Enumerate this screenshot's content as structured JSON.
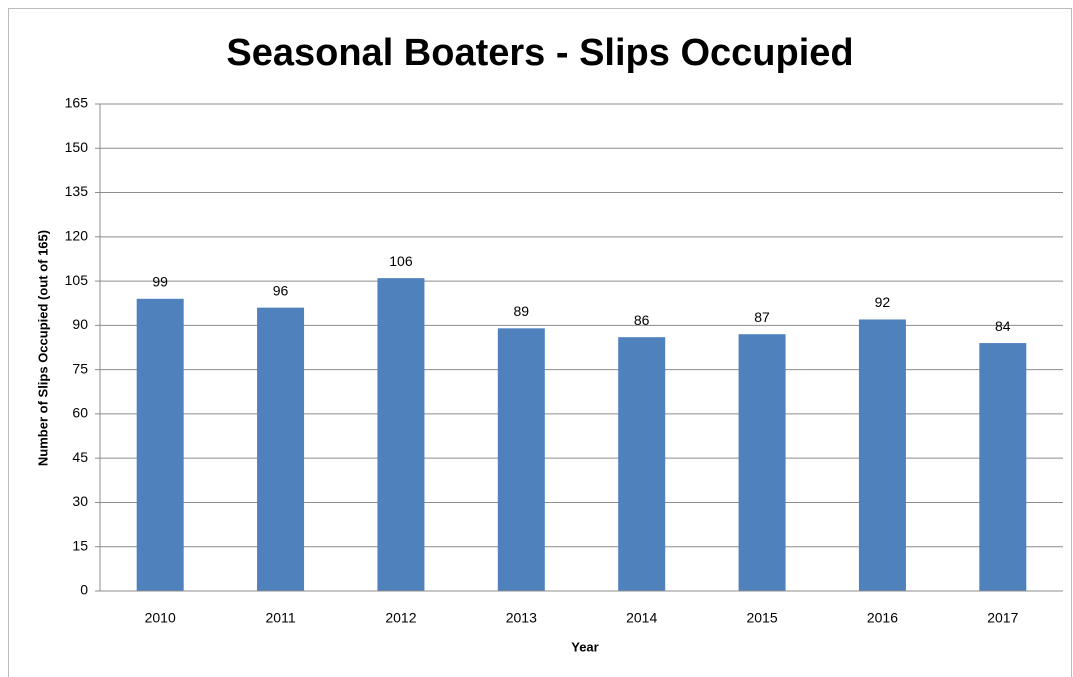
{
  "chart_data": {
    "type": "bar",
    "title": "Seasonal Boaters - Slips Occupied",
    "x_label": "Year",
    "y_label": "Number of Slips Occupied (out of 165)",
    "categories": [
      "2010",
      "2011",
      "2012",
      "2013",
      "2014",
      "2015",
      "2016",
      "2017"
    ],
    "values": [
      99,
      96,
      106,
      89,
      86,
      87,
      92,
      84
    ],
    "color": "#4f81bd",
    "ylim": [
      0,
      165
    ],
    "yticks": [
      0,
      15,
      30,
      45,
      60,
      75,
      90,
      105,
      120,
      135,
      150,
      165
    ],
    "grid": true,
    "data_labels": true
  }
}
